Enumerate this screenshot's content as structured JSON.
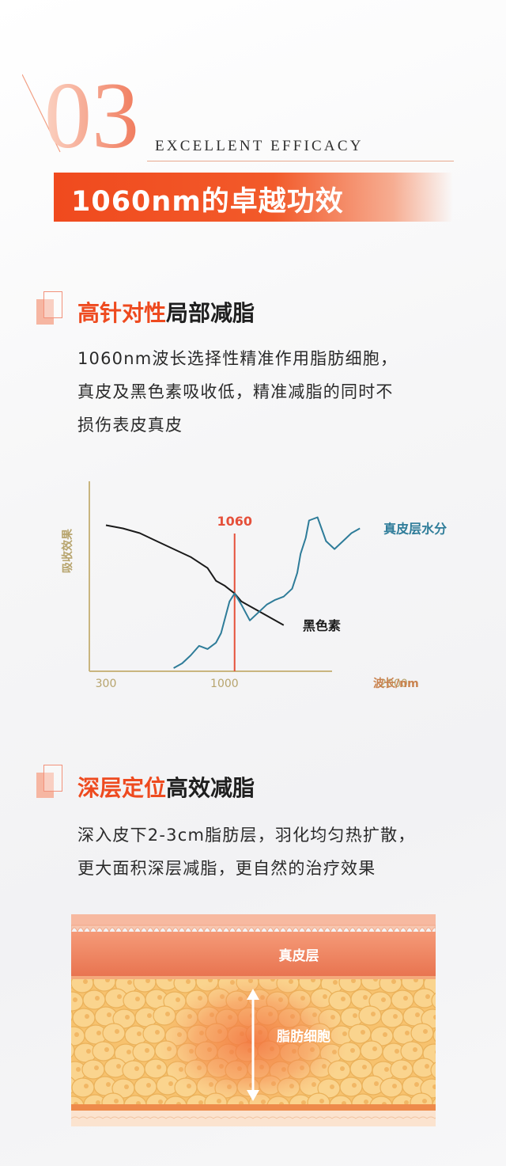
{
  "header": {
    "number": "03",
    "subtitle": "EXCELLENT EFFICACY",
    "title": "1060nm的卓越功效"
  },
  "section1": {
    "title_highlight": "高针对性",
    "title_rest": "局部减脂",
    "paragraph_lines": [
      "1060nm波长选择性精准作用脂肪细胞，",
      "真皮及黑色素吸收低，精准减脂的同时不",
      "损伤表皮真皮"
    ]
  },
  "chart_data": {
    "type": "line",
    "ylabel": "吸收效果",
    "xlabel": "波长/nm",
    "x_ticks": [
      "300",
      "1000",
      "2000"
    ],
    "xlim": [
      300,
      2000
    ],
    "marker": {
      "label": "1060",
      "x": 1060
    },
    "colors": {
      "axis": "#c9b57f",
      "marker": "#e5503a",
      "melanin": "#1a1a1a",
      "water": "#2e7c99"
    },
    "series": [
      {
        "name": "黑色素",
        "x": [
          300,
          400,
          500,
          600,
          700,
          800,
          900,
          950,
          1000,
          1060,
          1100,
          1200,
          1300,
          1350
        ],
        "y": [
          0.9,
          0.88,
          0.85,
          0.8,
          0.75,
          0.7,
          0.63,
          0.55,
          0.52,
          0.47,
          0.42,
          0.36,
          0.3,
          0.27
        ]
      },
      {
        "name": "真皮层水分",
        "x": [
          700,
          750,
          800,
          850,
          900,
          950,
          980,
          1000,
          1030,
          1060,
          1100,
          1150,
          1200,
          1250,
          1300,
          1350,
          1400,
          1430,
          1450,
          1480,
          1500,
          1550,
          1600,
          1650,
          1700,
          1750,
          1800
        ],
        "y": [
          0.0,
          0.03,
          0.08,
          0.14,
          0.12,
          0.16,
          0.22,
          0.3,
          0.42,
          0.47,
          0.4,
          0.3,
          0.35,
          0.4,
          0.43,
          0.45,
          0.5,
          0.6,
          0.72,
          0.82,
          0.93,
          0.95,
          0.8,
          0.75,
          0.8,
          0.85,
          0.88
        ]
      }
    ]
  },
  "section2": {
    "title_highlight": "深层定位",
    "title_rest": "高效减脂",
    "paragraph_lines": [
      "深入皮下2-3cm脂肪层，羽化均匀热扩散，",
      "更大面积深层减脂，更自然的治疗效果"
    ]
  },
  "tissue": {
    "dermis_label": "真皮层",
    "fat_label": "脂肪细胞"
  }
}
